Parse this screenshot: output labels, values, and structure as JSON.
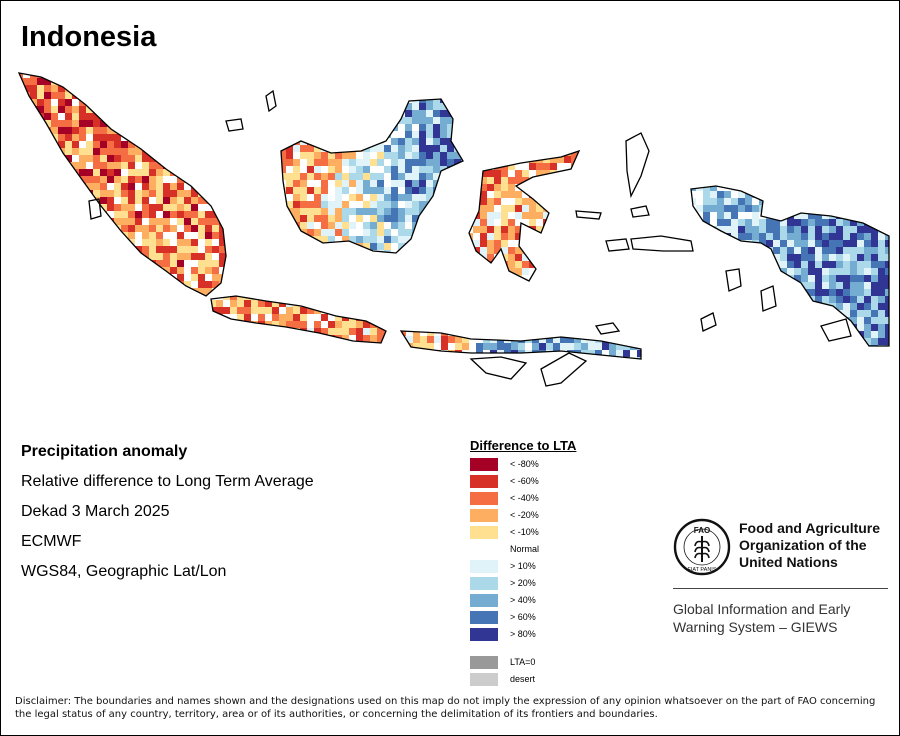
{
  "title": "Indonesia",
  "info": {
    "heading": "Precipitation anomaly",
    "line1": "Relative difference to Long Term Average",
    "line2": "Dekad 3 March 2025",
    "line3": "ECMWF",
    "line4": "WGS84, Geographic Lat/Lon"
  },
  "legend": {
    "title": "Difference to LTA",
    "items": [
      {
        "label": "< -80%",
        "color": "#a50026"
      },
      {
        "label": "< -60%",
        "color": "#d73027"
      },
      {
        "label": "< -40%",
        "color": "#f46d43"
      },
      {
        "label": "< -20%",
        "color": "#fdae61"
      },
      {
        "label": "< -10%",
        "color": "#fee090"
      },
      {
        "label": "Normal",
        "color": "#ffffff"
      },
      {
        "label": "> 10%",
        "color": "#e0f3f8"
      },
      {
        "label": "> 20%",
        "color": "#abd9e9"
      },
      {
        "label": "> 40%",
        "color": "#74add1"
      },
      {
        "label": "> 60%",
        "color": "#4575b4"
      },
      {
        "label": "> 80%",
        "color": "#313695"
      }
    ],
    "extra": [
      {
        "label": "LTA=0",
        "color": "#999999"
      },
      {
        "label": "desert",
        "color": "#cccccc"
      }
    ]
  },
  "logo": {
    "emblem_text": "FAO",
    "emblem_motto": "FIAT PANIS",
    "org_line1": "Food and Agriculture",
    "org_line2": "Organization of the",
    "org_line3": "United Nations",
    "giews_line1": "Global Information and Early",
    "giews_line2": "Warning System – GIEWS"
  },
  "disclaimer": "Disclaimer: The boundaries and names shown and the designations used on this map do not imply the expression of any opinion whatsoever on the part of FAO concerning the legal status of any country, territory, area or of its authorities, or concerning the delimitation of its frontiers and boundaries."
}
